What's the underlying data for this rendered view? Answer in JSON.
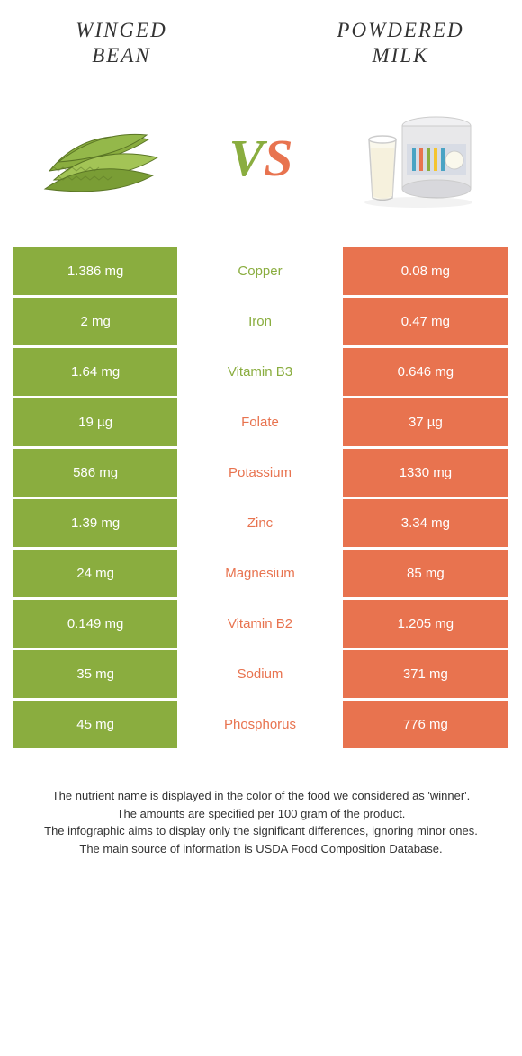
{
  "titles": {
    "left_l1": "WINGED",
    "left_l2": "BEAN",
    "right_l1": "POWDERED",
    "right_l2": "MILK"
  },
  "vs": {
    "v": "V",
    "s": "S"
  },
  "colors": {
    "left": "#8aad3f",
    "right": "#e8734f",
    "bean_light": "#a3c456",
    "bean_dark": "#6b8a2f",
    "milk_glass": "#f5f5f0",
    "milk_liquid": "#faf8ec",
    "can_body": "#e8e8ea",
    "can_lid": "#f0f0f2",
    "can_label": "#d8dce5"
  },
  "rows": [
    {
      "left": "1.386 mg",
      "name": "Copper",
      "right": "0.08 mg",
      "winner": "left"
    },
    {
      "left": "2 mg",
      "name": "Iron",
      "right": "0.47 mg",
      "winner": "left"
    },
    {
      "left": "1.64 mg",
      "name": "Vitamin B3",
      "right": "0.646 mg",
      "winner": "left"
    },
    {
      "left": "19 µg",
      "name": "Folate",
      "right": "37 µg",
      "winner": "right"
    },
    {
      "left": "586 mg",
      "name": "Potassium",
      "right": "1330 mg",
      "winner": "right"
    },
    {
      "left": "1.39 mg",
      "name": "Zinc",
      "right": "3.34 mg",
      "winner": "right"
    },
    {
      "left": "24 mg",
      "name": "Magnesium",
      "right": "85 mg",
      "winner": "right"
    },
    {
      "left": "0.149 mg",
      "name": "Vitamin B2",
      "right": "1.205 mg",
      "winner": "right"
    },
    {
      "left": "35 mg",
      "name": "Sodium",
      "right": "371 mg",
      "winner": "right"
    },
    {
      "left": "45 mg",
      "name": "Phosphorus",
      "right": "776 mg",
      "winner": "right"
    }
  ],
  "footer": {
    "l1": "The nutrient name is displayed in the color of the food we considered as 'winner'.",
    "l2": "The amounts are specified per 100 gram of the product.",
    "l3": "The infographic aims to display only the significant differences, ignoring minor ones.",
    "l4": "The main source of information is USDA Food Composition Database."
  }
}
